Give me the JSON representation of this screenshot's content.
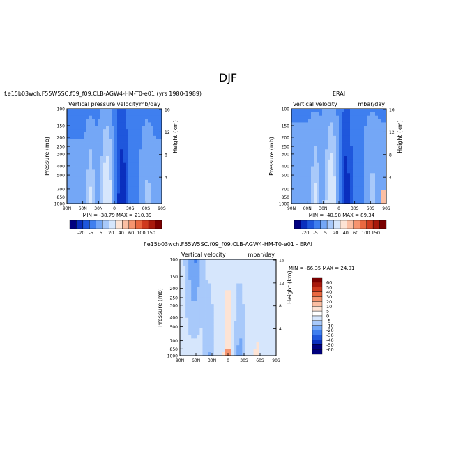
{
  "page_title": "DJF",
  "chart_data": [
    {
      "type": "heatmap",
      "case_title": "f.e15b03wch.F55W5SC.f09_f09.CLB-AGW4-HM-T0-e01 (yrs 1980-1989)",
      "left_label": "Vertical pressure velocity",
      "right_label": "mb/day",
      "ylabel": "Pressure (mb)",
      "ylabel_right": "Height (km)",
      "x_ticks": [
        "90N",
        "60N",
        "30N",
        "0",
        "30S",
        "60S",
        "90S"
      ],
      "y_ticks": [
        "100",
        "150",
        "200",
        "250",
        "300",
        "400",
        "500",
        "700",
        "850",
        "1000"
      ],
      "height_ticks": [
        "16",
        "12",
        "8",
        "4"
      ],
      "min_max_text": "MIN = -38.79   MAX = 210.89",
      "colorbar_labels": [
        "-20",
        "-5",
        "5",
        "20",
        "40",
        "60",
        "100",
        "150"
      ],
      "colorbar_orientation": "horizontal"
    },
    {
      "type": "heatmap",
      "case_title": "ERAI",
      "left_label": "Vertical velocity",
      "right_label": "mbar/day",
      "ylabel": "Pressure (mb)",
      "ylabel_right": "Height (km)",
      "x_ticks": [
        "90N",
        "60N",
        "30N",
        "0",
        "30S",
        "60S",
        "90S"
      ],
      "y_ticks": [
        "100",
        "150",
        "200",
        "250",
        "300",
        "400",
        "500",
        "700",
        "850",
        "1000"
      ],
      "height_ticks": [
        "16",
        "12",
        "8",
        "4"
      ],
      "min_max_text": "MIN = -40.98   MAX = 89.34",
      "colorbar_labels": [
        "-20",
        "-5",
        "5",
        "20",
        "40",
        "60",
        "100",
        "150"
      ],
      "colorbar_orientation": "horizontal"
    },
    {
      "type": "heatmap",
      "case_title": "f.e15b03wch.F55W5SC.f09_f09.CLB-AGW4-HM-T0-e01 - ERAI",
      "left_label": "Vertical velocity",
      "right_label": "mbar/day",
      "ylabel": "Pressure (mb)",
      "ylabel_right": "Height (km)",
      "x_ticks": [
        "90N",
        "60N",
        "30N",
        "0",
        "30S",
        "60S",
        "90S"
      ],
      "y_ticks": [
        "100",
        "150",
        "200",
        "250",
        "300",
        "400",
        "500",
        "700",
        "850",
        "1000"
      ],
      "height_ticks": [
        "16",
        "12",
        "8",
        "4"
      ],
      "min_max_text": "MIN = -66.35   MAX = 24.01",
      "colorbar_labels": [
        "60",
        "50",
        "40",
        "30",
        "20",
        "10",
        "5",
        "0",
        "-5",
        "-10",
        "-20",
        "-30",
        "-40",
        "-50",
        "-60"
      ],
      "colorbar_orientation": "vertical"
    }
  ],
  "colors": {
    "abs_scale": [
      "#00007f",
      "#0a2fbe",
      "#1f57dc",
      "#3f7fef",
      "#74a7f6",
      "#a8c9fa",
      "#d6e6fc",
      "#fde3d4",
      "#fbbfa3",
      "#f6946f",
      "#ea6840",
      "#cf3a1e",
      "#a8190c",
      "#7a0000"
    ],
    "diff_scale": [
      "#7a0000",
      "#a8190c",
      "#cf3a1e",
      "#ea6840",
      "#f6946f",
      "#fbbfa3",
      "#fde3d4",
      "#ffffff",
      "#d6e6fc",
      "#a8c9fa",
      "#74a7f6",
      "#3f7fef",
      "#1f57dc",
      "#0a2fbe",
      "#00007f"
    ]
  }
}
